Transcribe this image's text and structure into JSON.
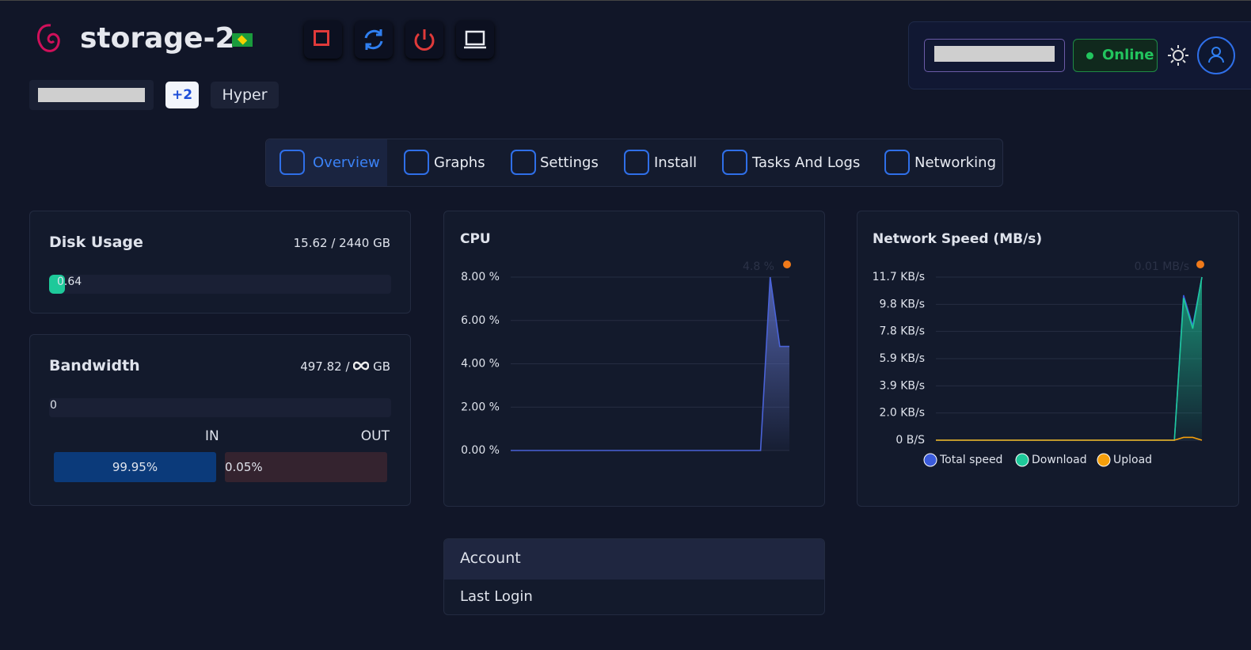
{
  "header": {
    "title": "storage-2",
    "tag_count": "+2",
    "tag": "Hyper",
    "status": "Online"
  },
  "tabs": [
    "Overview",
    "Graphs",
    "Settings",
    "Install",
    "Tasks And Logs",
    "Networking"
  ],
  "disk_usage": {
    "title": "Disk Usage",
    "usage": "15.62 / 2440 GB",
    "percent": 0.64
  },
  "bandwidth": {
    "title": "Bandwidth",
    "usage": "497.82 /",
    "unit": "GB",
    "percent": 0,
    "in_label": "IN",
    "out_label": "OUT",
    "in_percent": "99.95%",
    "out_percent": "0.05%"
  },
  "cpu_chart": {
    "type": "area",
    "title": "CPU",
    "annotation": "4.8 %",
    "color": "#4a63d8",
    "values": [
      0,
      0,
      0,
      0,
      0,
      0,
      0,
      0,
      0,
      0,
      0,
      0,
      0,
      0,
      0,
      0,
      0,
      0,
      0,
      0,
      0,
      0,
      0,
      0,
      0,
      0,
      0,
      8.0,
      4.8,
      4.8
    ],
    "ylim": [
      0,
      8
    ],
    "yticks": [
      {
        "value": 0,
        "label": "0.00 %"
      },
      {
        "value": 2,
        "label": "2.00 %"
      },
      {
        "value": 4,
        "label": "4.00 %"
      },
      {
        "value": 6,
        "label": "6.00 %"
      },
      {
        "value": 8,
        "label": "8.00 %"
      }
    ],
    "grid": true
  },
  "network_chart": {
    "type": "area",
    "title": "Network Speed (MB/s)",
    "annotation": "0.01 MB/s",
    "series": [
      {
        "name": "Total speed",
        "color": "#3b5bdb",
        "values": [
          0,
          0,
          0,
          0,
          0,
          0,
          0,
          0,
          0,
          0,
          0,
          0,
          0,
          0,
          0,
          0,
          0,
          0,
          0,
          0,
          0,
          0,
          0,
          0,
          0,
          0,
          0,
          10.4,
          8.2,
          11.7
        ]
      },
      {
        "name": "Download",
        "color": "#1ec99a",
        "values": [
          0,
          0,
          0,
          0,
          0,
          0,
          0,
          0,
          0,
          0,
          0,
          0,
          0,
          0,
          0,
          0,
          0,
          0,
          0,
          0,
          0,
          0,
          0,
          0,
          0,
          0,
          0,
          10.2,
          8.0,
          11.7
        ]
      },
      {
        "name": "Upload",
        "color": "#f59f0b",
        "values": [
          0,
          0,
          0,
          0,
          0,
          0,
          0,
          0,
          0,
          0,
          0,
          0,
          0,
          0,
          0,
          0,
          0,
          0,
          0,
          0,
          0,
          0,
          0,
          0,
          0,
          0,
          0,
          0.2,
          0.2,
          0
        ]
      }
    ],
    "ylim": [
      0,
      11.7
    ],
    "yticks": [
      {
        "value": 0,
        "label": "0 B/S"
      },
      {
        "value": 1.95,
        "label": "2.0 KB/s"
      },
      {
        "value": 3.9,
        "label": "3.9 KB/s"
      },
      {
        "value": 5.85,
        "label": "5.9 KB/s"
      },
      {
        "value": 7.8,
        "label": "7.8 KB/s"
      },
      {
        "value": 9.75,
        "label": "9.8 KB/s"
      },
      {
        "value": 11.7,
        "label": "11.7 KB/s"
      }
    ],
    "grid": true
  },
  "account": {
    "title": "Account",
    "last_login": "Last Login"
  }
}
